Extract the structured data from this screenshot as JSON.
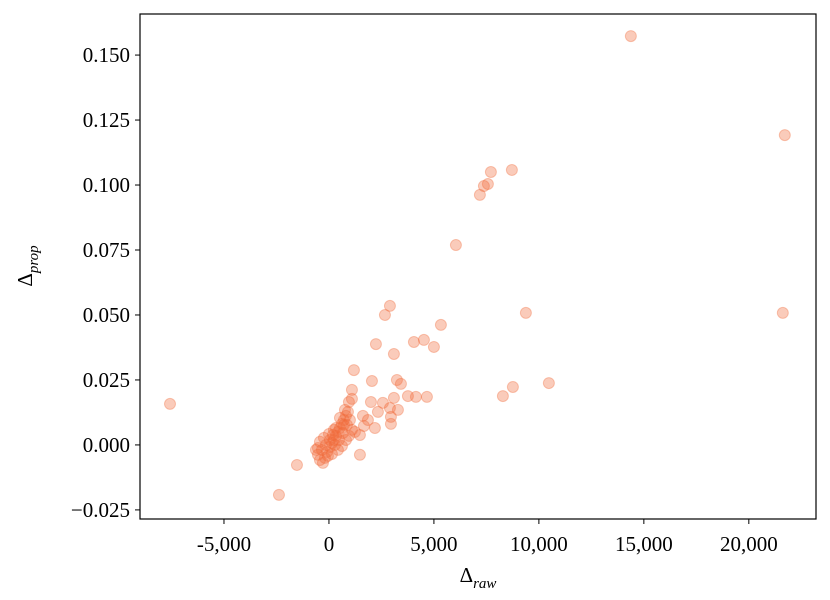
{
  "chart_data": {
    "type": "scatter",
    "x_label": {
      "main": "Δ",
      "sub": "raw"
    },
    "y_label": {
      "main": "Δ",
      "sub": "prop"
    },
    "color": "#f06a3a",
    "xlim": [
      -9000,
      23200
    ],
    "ylim": [
      -0.0285,
      0.1658
    ],
    "xticks": [
      {
        "value": -5000,
        "label": "-5,000"
      },
      0,
      {
        "value": 5000,
        "label": "5,000"
      },
      {
        "value": 10000,
        "label": "10,000"
      },
      {
        "value": 15000,
        "label": "15,000"
      },
      {
        "value": 20000,
        "label": "20,000"
      }
    ],
    "yticks": [
      {
        "value": -0.025,
        "label": "−0.025"
      },
      {
        "value": 0,
        "label": "0.000"
      },
      {
        "value": 0.025,
        "label": "0.025"
      },
      {
        "value": 0.05,
        "label": "0.050"
      },
      {
        "value": 0.075,
        "label": "0.075"
      },
      {
        "value": 0.1,
        "label": "0.100"
      },
      {
        "value": 0.125,
        "label": "0.125"
      },
      {
        "value": 0.15,
        "label": "0.150"
      }
    ],
    "x": [
      -7571,
      -2381,
      -1524,
      14381,
      21714,
      21619,
      7190,
      7381,
      7571,
      7714,
      8714,
      6048,
      2905,
      2667,
      5333,
      9381,
      2238,
      3095,
      4048,
      4524,
      5000,
      1190,
      2048,
      3238,
      3429,
      10476,
      8762,
      8286,
      3762,
      4143,
      4667,
      1095,
      1095,
      952,
      2000,
      2571,
      2905,
      3286,
      2333,
      1619,
      1857,
      2952,
      2190,
      1476,
      1476,
      714,
      1238,
      3095,
      2952,
      1667,
      -619,
      -524,
      -429,
      -286,
      -190,
      -95,
      48,
      143,
      238,
      333,
      429,
      524,
      619,
      714,
      810,
      905,
      762,
      524,
      333,
      190,
      48,
      -143,
      -333,
      -524,
      -48,
      286,
      476,
      667,
      857,
      1000,
      1095,
      952,
      810,
      619,
      429,
      143,
      -429,
      -238,
      0,
      238
    ],
    "y": [
      0.0158,
      -0.0192,
      -0.0077,
      0.1573,
      0.1192,
      0.0508,
      0.0962,
      0.0996,
      0.1004,
      0.105,
      0.1058,
      0.0769,
      0.0535,
      0.05,
      0.0462,
      0.0508,
      0.0388,
      0.035,
      0.0396,
      0.0404,
      0.0377,
      0.0288,
      0.0246,
      0.025,
      0.0235,
      0.0238,
      0.0223,
      0.0188,
      0.0188,
      0.0185,
      0.0185,
      0.0212,
      0.0177,
      0.0165,
      0.0165,
      0.0162,
      0.0142,
      0.0135,
      0.0127,
      0.0112,
      0.0096,
      0.0081,
      0.0065,
      0.0038,
      -0.0038,
      0.0077,
      0.005,
      0.0181,
      0.0108,
      0.0073,
      -0.0019,
      -0.0038,
      -0.0058,
      -0.0069,
      -0.005,
      -0.0027,
      -0.0008,
      0.0008,
      0.0019,
      0.0035,
      0.005,
      0.0065,
      0.0081,
      0.0096,
      0.0112,
      0.0127,
      0.0135,
      0.0104,
      0.0065,
      0.0038,
      0.0019,
      0,
      -0.0019,
      -0.0012,
      -0.0042,
      0,
      0.0019,
      0.0046,
      0.0077,
      0.0096,
      0.0058,
      0.0035,
      0.0019,
      -0.0004,
      -0.0019,
      -0.0035,
      0.0012,
      0.0027,
      0.0042,
      0.0058
    ]
  }
}
